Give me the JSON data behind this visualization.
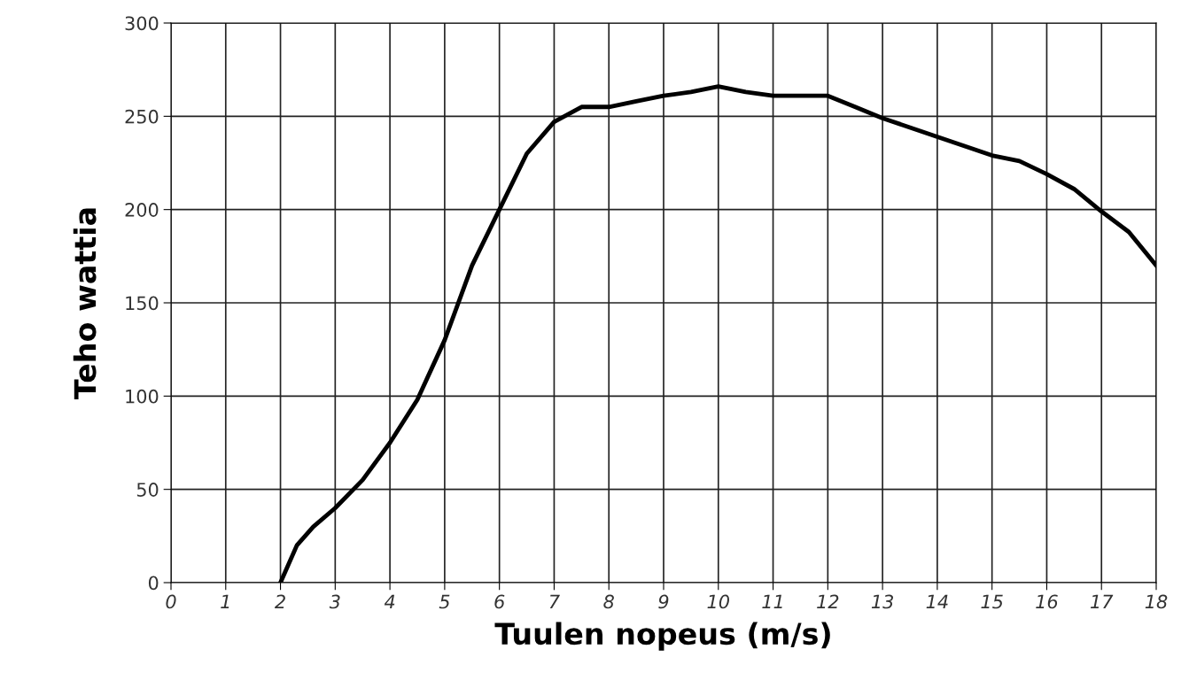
{
  "chart_data": {
    "type": "line",
    "xlabel": "Tuulen nopeus (m/s)",
    "ylabel": "Teho wattia",
    "x": [
      2,
      2.3,
      2.6,
      3,
      3.5,
      4,
      4.5,
      5,
      5.5,
      6,
      6.5,
      7,
      7.5,
      8,
      8.5,
      9,
      9.5,
      10,
      10.5,
      11,
      11.5,
      12,
      12.5,
      13,
      13.5,
      14,
      14.5,
      15,
      15.5,
      16,
      16.5,
      17,
      17.5,
      18
    ],
    "series": [
      {
        "color": "#000000",
        "values": [
          0,
          20,
          30,
          40,
          55,
          75,
          98,
          130,
          170,
          200,
          230,
          247,
          255,
          255,
          258,
          261,
          263,
          266,
          263,
          261,
          261,
          261,
          255,
          249,
          244,
          239,
          234,
          229,
          226,
          219,
          211,
          199,
          188,
          170
        ]
      }
    ],
    "xlim": [
      0,
      18
    ],
    "xticks": [
      0,
      1,
      2,
      3,
      4,
      5,
      6,
      7,
      8,
      9,
      10,
      11,
      12,
      13,
      14,
      15,
      16,
      17,
      18
    ],
    "ylim": [
      0,
      300
    ],
    "yticks": [
      0,
      50,
      100,
      150,
      200,
      250,
      300
    ],
    "grid": true,
    "marker": "none",
    "line_style": "solid"
  }
}
